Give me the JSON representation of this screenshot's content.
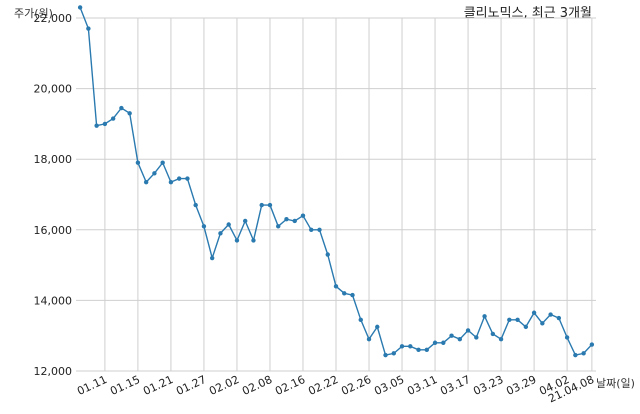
{
  "chart_data": {
    "type": "line",
    "title": "클리노믹스, 최근 3개월",
    "ylabel": "주가(원)",
    "xlabel": "날짜(일)",
    "ylim": [
      12000,
      22000
    ],
    "y_ticks": [
      "12,000",
      "14,000",
      "16,000",
      "18,000",
      "20,000",
      "22,000"
    ],
    "y_tick_values": [
      12000,
      14000,
      16000,
      18000,
      20000,
      22000
    ],
    "x_ticks": [
      "01.11",
      "01.15",
      "01.21",
      "01.27",
      "02.02",
      "02.08",
      "02.16",
      "02.22",
      "02.26",
      "03.05",
      "03.11",
      "03.17",
      "03.23",
      "03.29",
      "04.02",
      "21.04.08"
    ],
    "x_tick_index": [
      3,
      7,
      11,
      15,
      19,
      23,
      27,
      31,
      35,
      39,
      43,
      47,
      51,
      55,
      59,
      62
    ],
    "grid": true,
    "series": [
      {
        "color": "#2a7ab0",
        "values": [
          22300,
          21700,
          18950,
          19000,
          19150,
          19450,
          19300,
          17900,
          17350,
          17600,
          17900,
          17350,
          17450,
          17450,
          16700,
          16100,
          15200,
          15900,
          16150,
          15700,
          16250,
          15700,
          16700,
          16700,
          16100,
          16300,
          16250,
          16400,
          16000,
          16000,
          15300,
          14400,
          14200,
          14150,
          13450,
          12900,
          13250,
          12450,
          12500,
          12700,
          12700,
          12600,
          12600,
          12800,
          12800,
          13000,
          12900,
          13150,
          12950,
          13550,
          13050,
          12900,
          13450,
          13450,
          13250,
          13650,
          13350,
          13600,
          13500,
          12950,
          12450,
          12500,
          12750
        ]
      }
    ]
  }
}
